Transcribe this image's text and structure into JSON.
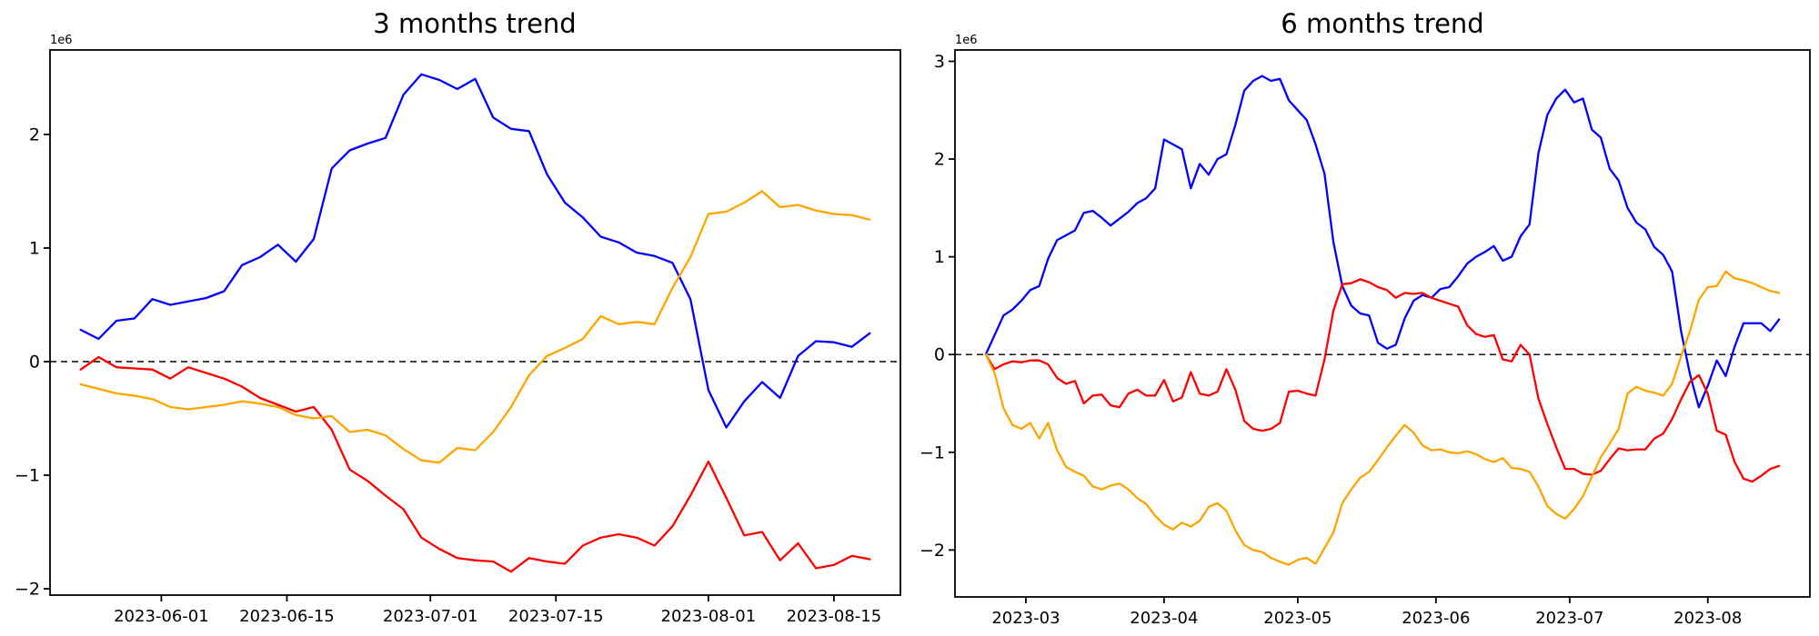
{
  "figure": {
    "background": "#ffffff",
    "axis_color": "#000000",
    "zero_line_color": "#000000"
  },
  "chart_data": [
    {
      "id": "three-months",
      "type": "line",
      "title": "3 months trend",
      "offset_label": "1e6",
      "x_start_date": "2023-05-23",
      "x_step_days": 2,
      "x_tick_labels": [
        "2023-06-01",
        "2023-06-15",
        "2023-07-01",
        "2023-07-15",
        "2023-08-01",
        "2023-08-15"
      ],
      "x_tick_days": [
        9,
        23,
        39,
        53,
        70,
        84
      ],
      "y_ticks": [
        -2,
        -1,
        0,
        1,
        2
      ],
      "ylim": [
        -2.056,
        2.744
      ],
      "y_scale_factor": "1e6",
      "grid": false,
      "legend": null,
      "zero_line": true,
      "series": [
        {
          "name": "blue",
          "color": "#0000ff",
          "values": [
            0.28,
            0.2,
            0.36,
            0.38,
            0.55,
            0.5,
            0.53,
            0.56,
            0.62,
            0.85,
            0.92,
            1.03,
            0.88,
            1.08,
            1.7,
            1.86,
            1.92,
            1.97,
            2.35,
            2.53,
            2.48,
            2.4,
            2.49,
            2.15,
            2.05,
            2.03,
            1.65,
            1.4,
            1.27,
            1.1,
            1.05,
            0.96,
            0.93,
            0.87,
            0.55,
            -0.25,
            -0.58,
            -0.35,
            -0.18,
            -0.32,
            0.05,
            0.18,
            0.17,
            0.13,
            0.25
          ]
        },
        {
          "name": "red",
          "color": "#ff0000",
          "values": [
            -0.07,
            0.04,
            -0.05,
            -0.06,
            -0.07,
            -0.15,
            -0.05,
            -0.1,
            -0.15,
            -0.22,
            -0.32,
            -0.38,
            -0.44,
            -0.4,
            -0.6,
            -0.95,
            -1.05,
            -1.18,
            -1.3,
            -1.55,
            -1.65,
            -1.73,
            -1.75,
            -1.76,
            -1.85,
            -1.73,
            -1.76,
            -1.78,
            -1.62,
            -1.55,
            -1.52,
            -1.55,
            -1.62,
            -1.45,
            -1.18,
            -0.88,
            -1.2,
            -1.53,
            -1.5,
            -1.75,
            -1.6,
            -1.82,
            -1.79,
            -1.71,
            -1.74
          ]
        },
        {
          "name": "orange",
          "color": "#ffa500",
          "values": [
            -0.2,
            -0.24,
            -0.28,
            -0.3,
            -0.33,
            -0.4,
            -0.42,
            -0.4,
            -0.38,
            -0.35,
            -0.37,
            -0.4,
            -0.47,
            -0.5,
            -0.48,
            -0.62,
            -0.6,
            -0.65,
            -0.77,
            -0.87,
            -0.89,
            -0.76,
            -0.78,
            -0.62,
            -0.4,
            -0.12,
            0.05,
            0.12,
            0.2,
            0.4,
            0.33,
            0.35,
            0.33,
            0.65,
            0.92,
            1.3,
            1.32,
            1.4,
            1.5,
            1.36,
            1.38,
            1.33,
            1.3,
            1.29,
            1.25
          ]
        }
      ]
    },
    {
      "id": "six-months",
      "type": "line",
      "title": "6 months trend",
      "offset_label": "1e6",
      "x_start_date": "2023-02-20",
      "x_step_days": 2,
      "x_tick_labels": [
        "2023-03",
        "2023-04",
        "2023-05",
        "2023-06",
        "2023-07",
        "2023-08"
      ],
      "x_tick_days": [
        9,
        40,
        70,
        101,
        131,
        162
      ],
      "y_ticks": [
        -2,
        -1,
        0,
        1,
        2,
        3
      ],
      "ylim": [
        -2.48,
        3.116
      ],
      "y_scale_factor": "1e6",
      "grid": false,
      "legend": null,
      "zero_line": true,
      "series": [
        {
          "name": "blue",
          "color": "#0000ff",
          "values": [
            0.0,
            0.2,
            0.4,
            0.46,
            0.55,
            0.66,
            0.7,
            0.98,
            1.17,
            1.22,
            1.27,
            1.45,
            1.47,
            1.4,
            1.32,
            1.39,
            1.46,
            1.55,
            1.6,
            1.7,
            2.2,
            2.15,
            2.1,
            1.7,
            1.95,
            1.84,
            2.0,
            2.05,
            2.35,
            2.7,
            2.8,
            2.85,
            2.8,
            2.82,
            2.6,
            2.5,
            2.4,
            2.15,
            1.85,
            1.15,
            0.7,
            0.5,
            0.42,
            0.4,
            0.12,
            0.06,
            0.1,
            0.37,
            0.55,
            0.61,
            0.58,
            0.67,
            0.69,
            0.8,
            0.93,
            1.0,
            1.05,
            1.11,
            0.96,
            1.0,
            1.21,
            1.33,
            2.06,
            2.45,
            2.62,
            2.71,
            2.58,
            2.62,
            2.3,
            2.22,
            1.9,
            1.78,
            1.5,
            1.35,
            1.28,
            1.1,
            1.02,
            0.85,
            0.24,
            -0.2,
            -0.54,
            -0.32,
            -0.06,
            -0.22,
            0.08,
            0.32,
            0.32,
            0.32,
            0.24,
            0.36
          ]
        },
        {
          "name": "red",
          "color": "#ff0000",
          "values": [
            0.0,
            -0.15,
            -0.1,
            -0.07,
            -0.08,
            -0.06,
            -0.06,
            -0.1,
            -0.24,
            -0.3,
            -0.27,
            -0.5,
            -0.42,
            -0.41,
            -0.52,
            -0.54,
            -0.4,
            -0.36,
            -0.42,
            -0.42,
            -0.26,
            -0.48,
            -0.44,
            -0.18,
            -0.4,
            -0.42,
            -0.38,
            -0.15,
            -0.36,
            -0.68,
            -0.76,
            -0.78,
            -0.76,
            -0.7,
            -0.38,
            -0.37,
            -0.4,
            -0.42,
            -0.05,
            0.45,
            0.72,
            0.73,
            0.77,
            0.74,
            0.69,
            0.66,
            0.58,
            0.63,
            0.62,
            0.63,
            0.58,
            0.55,
            0.52,
            0.49,
            0.3,
            0.21,
            0.18,
            0.2,
            -0.05,
            -0.07,
            0.1,
            0.0,
            -0.45,
            -0.71,
            -0.95,
            -1.17,
            -1.17,
            -1.22,
            -1.23,
            -1.19,
            -1.07,
            -0.96,
            -0.98,
            -0.97,
            -0.97,
            -0.86,
            -0.81,
            -0.66,
            -0.46,
            -0.28,
            -0.21,
            -0.4,
            -0.78,
            -0.82,
            -1.1,
            -1.27,
            -1.3,
            -1.24,
            -1.17,
            -1.14
          ]
        },
        {
          "name": "orange",
          "color": "#ffa500",
          "values": [
            0.0,
            -0.19,
            -0.55,
            -0.72,
            -0.76,
            -0.7,
            -0.86,
            -0.7,
            -0.98,
            -1.15,
            -1.2,
            -1.24,
            -1.35,
            -1.38,
            -1.34,
            -1.32,
            -1.38,
            -1.47,
            -1.53,
            -1.65,
            -1.74,
            -1.79,
            -1.72,
            -1.76,
            -1.7,
            -1.56,
            -1.52,
            -1.6,
            -1.8,
            -1.95,
            -2.0,
            -2.02,
            -2.08,
            -2.12,
            -2.15,
            -2.1,
            -2.08,
            -2.14,
            -1.98,
            -1.82,
            -1.52,
            -1.38,
            -1.26,
            -1.2,
            -1.08,
            -0.95,
            -0.83,
            -0.72,
            -0.8,
            -0.93,
            -0.98,
            -0.97,
            -1.0,
            -1.01,
            -0.99,
            -1.02,
            -1.07,
            -1.1,
            -1.06,
            -1.16,
            -1.17,
            -1.2,
            -1.35,
            -1.55,
            -1.63,
            -1.68,
            -1.58,
            -1.45,
            -1.25,
            -1.05,
            -0.91,
            -0.76,
            -0.4,
            -0.33,
            -0.37,
            -0.39,
            -0.42,
            -0.3,
            -0.02,
            0.24,
            0.56,
            0.69,
            0.7,
            0.85,
            0.78,
            0.76,
            0.73,
            0.69,
            0.65,
            0.63
          ]
        }
      ]
    }
  ]
}
